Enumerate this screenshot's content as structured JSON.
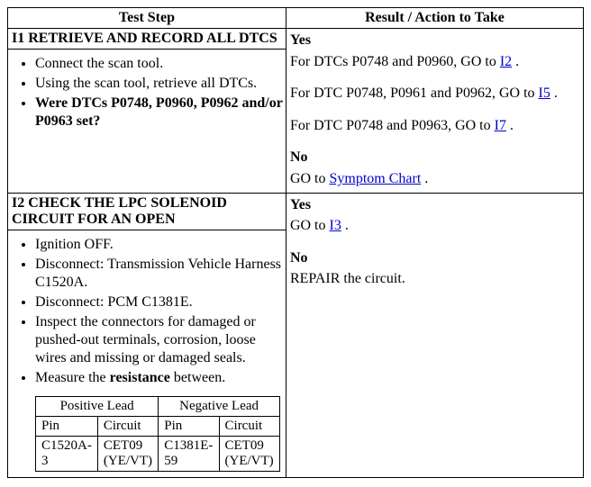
{
  "headers": {
    "test_step": "Test Step",
    "result": "Result / Action to Take"
  },
  "row1": {
    "title": "I1 RETRIEVE AND RECORD ALL DTCS",
    "bullets": [
      "Connect the scan tool.",
      "Using the scan tool, retrieve all DTCs."
    ],
    "question_prefix": "Were DTCs P0748, P0960, P0962 and/or P0963 set?",
    "yes_label": "Yes",
    "yes_line1_pre": "For DTCs P0748 and P0960, GO to ",
    "yes_line1_link": "I2",
    "yes_line1_post": " .",
    "yes_line2_pre": "For DTC P0748, P0961 and P0962, GO to ",
    "yes_line2_link": "I5",
    "yes_line2_post": " .",
    "yes_line3_pre": "For DTC P0748 and P0963, GO to ",
    "yes_line3_link": "I7",
    "yes_line3_post": " .",
    "no_label": "No",
    "no_pre": "GO to ",
    "no_link": "Symptom Chart",
    "no_post": " ."
  },
  "row2": {
    "title": "I2 CHECK THE LPC SOLENOID CIRCUIT FOR AN OPEN",
    "bullets": [
      "Ignition OFF.",
      "Disconnect: Transmission Vehicle Harness C1520A.",
      "Disconnect: PCM C1381E.",
      "Inspect the connectors for damaged or pushed-out terminals, corrosion, loose wires and missing or damaged seals."
    ],
    "bullet_measure_pre": "Measure the ",
    "bullet_measure_bold": "resistance",
    "bullet_measure_post": " between.",
    "leads": {
      "pos_header": "Positive Lead",
      "neg_header": "Negative Lead",
      "pin_label": "Pin",
      "circuit_label": "Circuit",
      "row": {
        "pos_pin": "C1520A-3",
        "pos_circuit": "CET09 (YE/VT)",
        "neg_pin": "C1381E-59",
        "neg_circuit": "CET09 (YE/VT)"
      }
    },
    "yes_label": "Yes",
    "yes_pre": "GO to ",
    "yes_link": "I3",
    "yes_post": " .",
    "no_label": "No",
    "no_text": "REPAIR the circuit."
  }
}
